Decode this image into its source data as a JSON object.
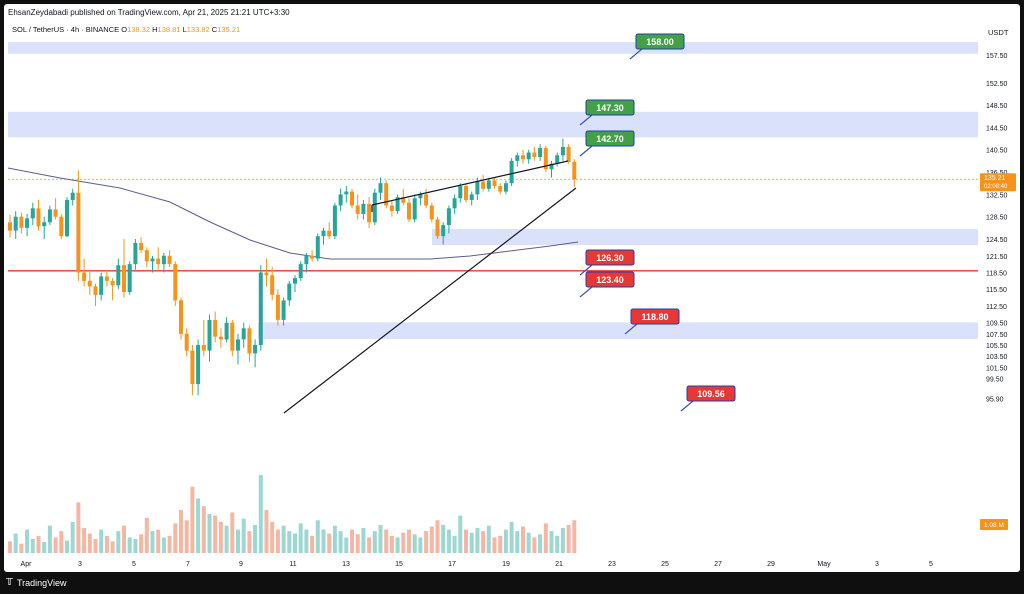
{
  "header": {
    "publish_line": "EhsanZeydabadi published on TradingView.com, Apr 21, 2025 21:21 UTC+3:30",
    "symbol": "SOL / TetherUS · 4h · BINANCE",
    "ohlc": {
      "o_label": "O",
      "o": "138.32",
      "h_label": "H",
      "h": "138.81",
      "l_label": "L",
      "l": "133.82",
      "c_label": "C",
      "c": "135.21"
    },
    "currency": "USDT"
  },
  "footer": {
    "brand": "TradingView",
    "logo_icon": "tradingview-logo-icon"
  },
  "colors": {
    "up": "#26a69a",
    "down": "#f7931a",
    "zone": "#d6defa",
    "ma": "#5b5f8a",
    "red_line": "#e53935",
    "green_label": "#43a047",
    "red_label": "#e53935"
  },
  "chart_data": {
    "type": "candlestick",
    "symbol": "SOL/USDT",
    "timeframe": "4h",
    "x_ticks": [
      "Apr",
      "3",
      "5",
      "7",
      "9",
      "11",
      "13",
      "15",
      "17",
      "19",
      "21",
      "23",
      "25",
      "27",
      "29",
      "May",
      "3",
      "5"
    ],
    "y_ticks": [
      "157.50",
      "152.50",
      "148.50",
      "144.50",
      "140.50",
      "136.50",
      "132.50",
      "128.50",
      "124.50",
      "121.50",
      "118.50",
      "115.50",
      "112.50",
      "109.50",
      "107.50",
      "105.50",
      "103.50",
      "101.50",
      "99.50",
      "95.90"
    ],
    "y_range": [
      94.5,
      161.5
    ],
    "last_price": {
      "value": 135.21,
      "label": "135.21",
      "countdown": "02:08:40"
    },
    "volume_label": "1.08 M",
    "zones": [
      {
        "from": 157.7,
        "to": 159.8
      },
      {
        "from": 142.7,
        "to": 147.3
      },
      {
        "from": 123.4,
        "to": 126.3
      },
      {
        "from": 106.6,
        "to": 109.56
      }
    ],
    "horizontal_line": {
      "value": 118.8
    },
    "price_labels": [
      {
        "value": 158.0,
        "text": "158.00",
        "kind": "target"
      },
      {
        "value": 147.3,
        "text": "147.30",
        "kind": "target"
      },
      {
        "value": 142.7,
        "text": "142.70",
        "kind": "target"
      },
      {
        "value": 126.3,
        "text": "126.30",
        "kind": "support"
      },
      {
        "value": 123.4,
        "text": "123.40",
        "kind": "support"
      },
      {
        "value": 118.8,
        "text": "118.80",
        "kind": "support"
      },
      {
        "value": 109.56,
        "text": "109.56",
        "kind": "support"
      }
    ],
    "candles_ohlc": [
      [
        127.5,
        128.8,
        124.8,
        126.0
      ],
      [
        126.0,
        129.5,
        124.5,
        128.5
      ],
      [
        128.5,
        129.2,
        125.5,
        126.5
      ],
      [
        126.5,
        129.0,
        125.0,
        128.2
      ],
      [
        128.2,
        131.0,
        127.0,
        130.0
      ],
      [
        130.0,
        131.5,
        126.0,
        126.8
      ],
      [
        126.8,
        128.5,
        124.5,
        127.5
      ],
      [
        127.5,
        130.5,
        127.0,
        129.8
      ],
      [
        129.8,
        131.8,
        128.0,
        128.5
      ],
      [
        128.5,
        129.0,
        124.5,
        125.0
      ],
      [
        125.0,
        132.0,
        124.8,
        131.5
      ],
      [
        131.5,
        133.5,
        130.5,
        132.8
      ],
      [
        132.8,
        136.8,
        117.0,
        118.5
      ],
      [
        118.5,
        121.0,
        116.0,
        117.0
      ],
      [
        117.0,
        119.0,
        114.5,
        116.0
      ],
      [
        116.0,
        116.5,
        112.5,
        114.5
      ],
      [
        114.5,
        118.5,
        113.5,
        117.8
      ],
      [
        117.8,
        119.0,
        116.0,
        117.0
      ],
      [
        117.0,
        117.5,
        113.5,
        116.2
      ],
      [
        116.2,
        121.0,
        115.5,
        119.8
      ],
      [
        119.8,
        124.5,
        114.0,
        115.0
      ],
      [
        115.0,
        120.5,
        114.5,
        120.0
      ],
      [
        120.0,
        124.5,
        119.0,
        123.8
      ],
      [
        123.8,
        124.8,
        122.0,
        122.5
      ],
      [
        122.5,
        123.0,
        119.5,
        120.5
      ],
      [
        120.5,
        121.5,
        118.5,
        121.0
      ],
      [
        121.0,
        123.0,
        119.0,
        120.0
      ],
      [
        120.0,
        122.0,
        118.5,
        121.5
      ],
      [
        121.5,
        122.5,
        119.5,
        120.0
      ],
      [
        120.0,
        120.5,
        112.5,
        113.5
      ],
      [
        113.5,
        114.0,
        106.5,
        107.5
      ],
      [
        107.5,
        108.5,
        103.5,
        104.5
      ],
      [
        104.5,
        105.5,
        96.5,
        98.5
      ],
      [
        98.5,
        106.5,
        96.5,
        105.5
      ],
      [
        105.5,
        110.0,
        103.5,
        104.5
      ],
      [
        104.5,
        111.0,
        102.5,
        110.0
      ],
      [
        110.0,
        111.5,
        106.0,
        107.0
      ],
      [
        107.0,
        108.5,
        105.0,
        106.5
      ],
      [
        106.5,
        110.5,
        106.0,
        109.5
      ],
      [
        109.5,
        110.0,
        103.5,
        104.5
      ],
      [
        104.5,
        107.5,
        102.0,
        106.5
      ],
      [
        106.5,
        109.5,
        105.0,
        108.5
      ],
      [
        108.5,
        109.0,
        102.5,
        104.0
      ],
      [
        104.0,
        106.5,
        101.5,
        105.5
      ],
      [
        105.5,
        119.8,
        104.5,
        118.5
      ],
      [
        118.5,
        121.0,
        116.0,
        118.0
      ],
      [
        118.0,
        119.5,
        113.5,
        114.5
      ],
      [
        114.5,
        115.5,
        109.0,
        110.0
      ],
      [
        110.0,
        114.0,
        109.0,
        113.5
      ],
      [
        113.5,
        117.0,
        112.5,
        116.5
      ],
      [
        116.5,
        118.0,
        115.0,
        117.5
      ],
      [
        117.5,
        120.5,
        117.0,
        120.0
      ],
      [
        120.0,
        122.0,
        118.5,
        121.5
      ],
      [
        121.5,
        122.5,
        120.5,
        121.0
      ],
      [
        121.0,
        125.5,
        120.5,
        125.0
      ],
      [
        125.0,
        126.5,
        123.5,
        126.0
      ],
      [
        126.0,
        127.5,
        124.5,
        125.0
      ],
      [
        125.0,
        131.0,
        124.5,
        130.5
      ],
      [
        130.5,
        133.5,
        129.5,
        132.5
      ],
      [
        132.5,
        134.0,
        131.0,
        133.0
      ],
      [
        133.0,
        133.5,
        130.0,
        130.5
      ],
      [
        130.5,
        132.5,
        128.0,
        129.0
      ],
      [
        129.0,
        131.5,
        128.0,
        130.8
      ],
      [
        130.8,
        132.0,
        126.5,
        127.5
      ],
      [
        127.5,
        133.5,
        127.0,
        132.8
      ],
      [
        132.8,
        135.5,
        131.5,
        134.5
      ],
      [
        134.5,
        135.0,
        130.0,
        130.5
      ],
      [
        130.5,
        131.5,
        128.5,
        129.5
      ],
      [
        129.5,
        132.5,
        129.0,
        132.0
      ],
      [
        132.0,
        133.5,
        130.5,
        131.0
      ],
      [
        131.0,
        131.8,
        127.5,
        128.0
      ],
      [
        128.0,
        132.5,
        127.5,
        131.8
      ],
      [
        131.8,
        133.0,
        130.5,
        132.5
      ],
      [
        132.5,
        133.5,
        130.0,
        130.5
      ],
      [
        130.5,
        131.0,
        127.5,
        128.0
      ],
      [
        128.0,
        128.5,
        124.5,
        125.0
      ],
      [
        125.0,
        127.5,
        123.5,
        127.0
      ],
      [
        127.0,
        130.5,
        125.5,
        130.0
      ],
      [
        130.0,
        132.5,
        129.0,
        131.8
      ],
      [
        131.8,
        134.5,
        131.0,
        134.0
      ],
      [
        134.0,
        134.5,
        131.0,
        131.5
      ],
      [
        131.5,
        133.0,
        130.5,
        132.5
      ],
      [
        132.5,
        135.5,
        131.5,
        134.8
      ],
      [
        134.8,
        136.0,
        133.0,
        133.5
      ],
      [
        133.5,
        135.5,
        133.0,
        135.0
      ],
      [
        135.0,
        135.5,
        133.5,
        134.0
      ],
      [
        134.0,
        134.5,
        132.5,
        133.0
      ],
      [
        133.0,
        135.0,
        132.5,
        134.5
      ],
      [
        134.5,
        139.0,
        134.0,
        138.5
      ],
      [
        138.5,
        140.0,
        137.5,
        139.5
      ],
      [
        139.5,
        140.5,
        138.0,
        138.8
      ],
      [
        138.8,
        140.5,
        138.0,
        140.0
      ],
      [
        140.0,
        141.0,
        138.5,
        139.2
      ],
      [
        139.2,
        141.5,
        138.5,
        140.8
      ],
      [
        140.8,
        141.2,
        136.5,
        137.0
      ],
      [
        137.0,
        138.5,
        135.5,
        138.0
      ],
      [
        138.0,
        140.0,
        137.5,
        139.5
      ],
      [
        139.5,
        142.5,
        138.5,
        141.0
      ],
      [
        141.0,
        141.5,
        138.0,
        138.32
      ],
      [
        138.32,
        138.81,
        133.82,
        135.21
      ]
    ],
    "volumes": [
      0.15,
      0.25,
      0.12,
      0.3,
      0.18,
      0.22,
      0.14,
      0.35,
      0.2,
      0.28,
      0.16,
      0.4,
      0.65,
      0.32,
      0.25,
      0.18,
      0.3,
      0.22,
      0.15,
      0.28,
      0.35,
      0.2,
      0.18,
      0.24,
      0.45,
      0.28,
      0.3,
      0.2,
      0.22,
      0.38,
      0.55,
      0.42,
      0.85,
      0.7,
      0.6,
      0.5,
      0.48,
      0.4,
      0.35,
      0.52,
      0.3,
      0.44,
      0.28,
      0.36,
      1.0,
      0.55,
      0.4,
      0.3,
      0.35,
      0.28,
      0.25,
      0.38,
      0.3,
      0.22,
      0.42,
      0.3,
      0.25,
      0.35,
      0.28,
      0.2,
      0.3,
      0.24,
      0.32,
      0.2,
      0.28,
      0.36,
      0.3,
      0.22,
      0.2,
      0.26,
      0.3,
      0.24,
      0.2,
      0.28,
      0.34,
      0.42,
      0.36,
      0.3,
      0.22,
      0.48,
      0.3,
      0.26,
      0.32,
      0.28,
      0.35,
      0.2,
      0.22,
      0.3,
      0.4,
      0.28,
      0.34,
      0.26,
      0.2,
      0.24,
      0.38,
      0.28,
      0.22,
      0.32,
      0.36,
      0.42
    ]
  }
}
